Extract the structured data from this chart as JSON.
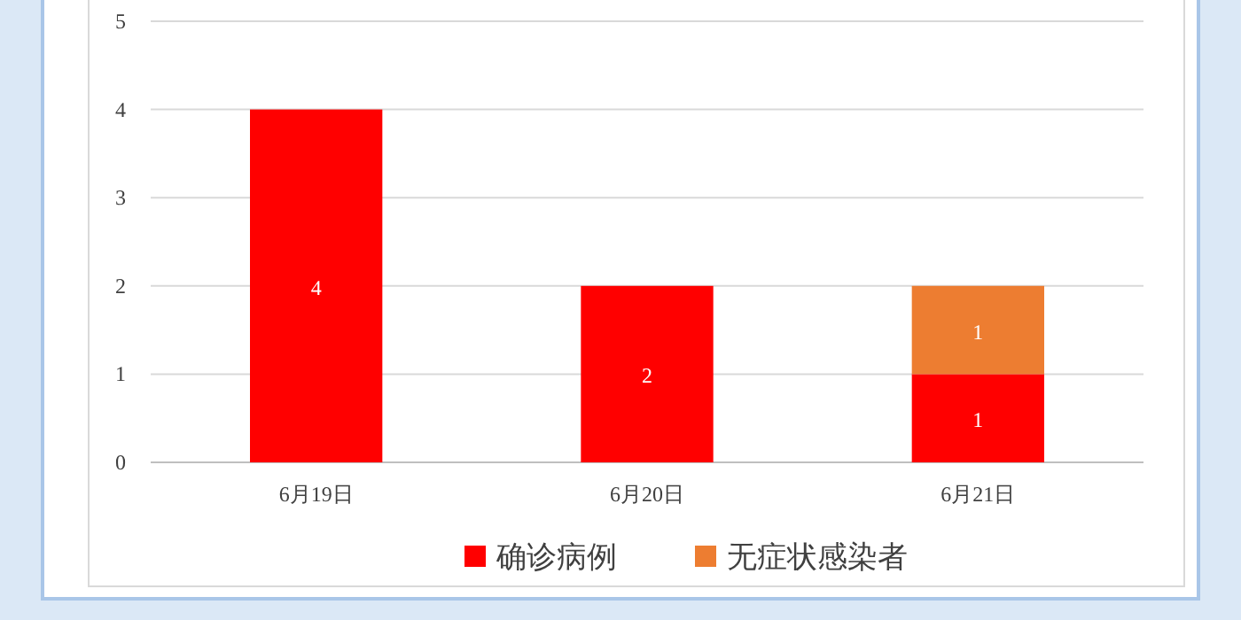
{
  "chart_data": {
    "type": "bar",
    "stacked": true,
    "categories": [
      "6月19日",
      "6月20日",
      "6月21日"
    ],
    "series": [
      {
        "name": "确诊病例",
        "color": "#ff0000",
        "values": [
          4,
          2,
          1
        ]
      },
      {
        "name": "无症状感染者",
        "color": "#ed7d31",
        "values": [
          null,
          null,
          1
        ]
      }
    ],
    "ylim": [
      0,
      5
    ],
    "yticks": [
      0,
      1,
      2,
      3,
      4,
      5
    ],
    "grid": "y",
    "legend": "bottom",
    "data_labels": true
  }
}
